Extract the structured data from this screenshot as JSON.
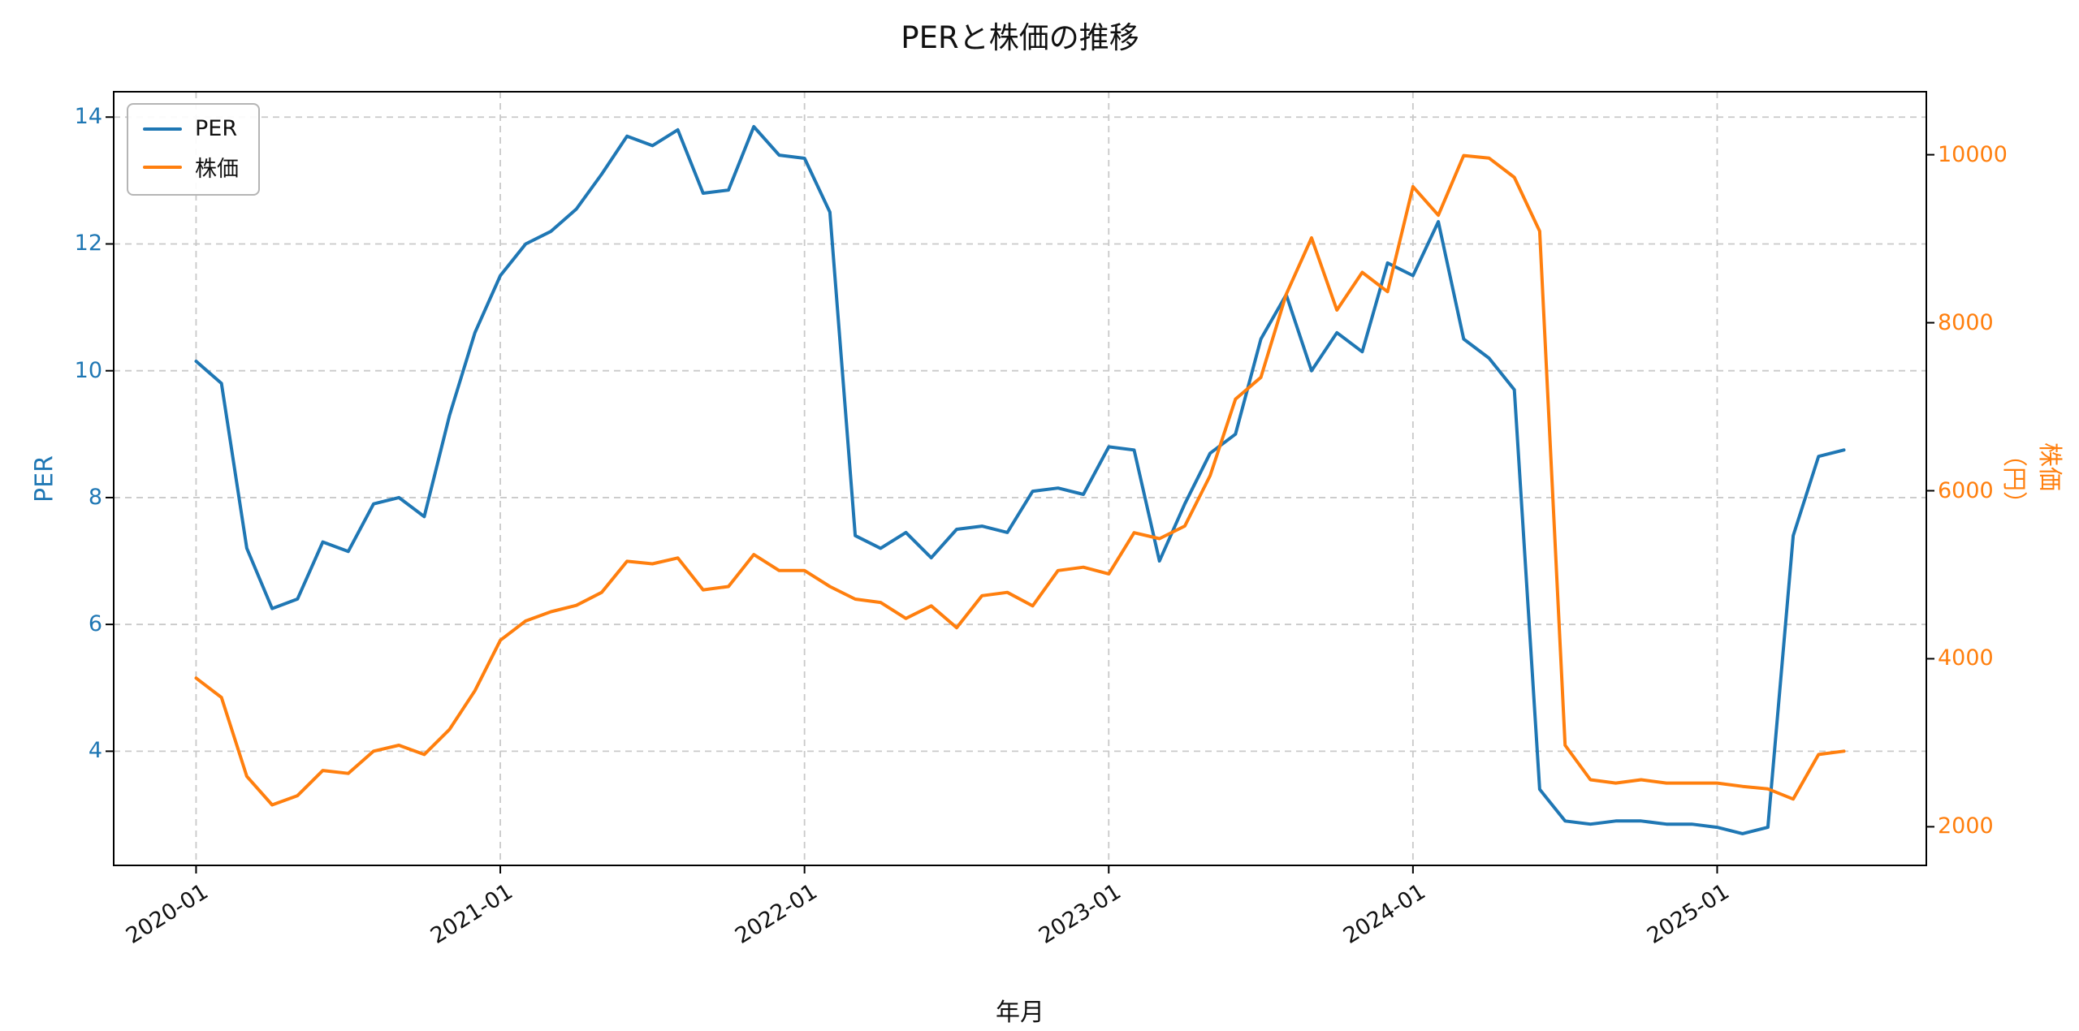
{
  "chart_data": {
    "type": "line",
    "title": "PERと株価の推移",
    "xlabel": "年月",
    "ylabel_left": "PER",
    "ylabel_right": "株価（円）",
    "grid": true,
    "legend_position": "upper-left",
    "x": [
      "2020-01",
      "2020-02",
      "2020-03",
      "2020-04",
      "2020-05",
      "2020-06",
      "2020-07",
      "2020-08",
      "2020-09",
      "2020-10",
      "2020-11",
      "2020-12",
      "2021-01",
      "2021-02",
      "2021-03",
      "2021-04",
      "2021-05",
      "2021-06",
      "2021-07",
      "2021-08",
      "2021-09",
      "2021-10",
      "2021-11",
      "2021-12",
      "2022-01",
      "2022-02",
      "2022-03",
      "2022-04",
      "2022-05",
      "2022-06",
      "2022-07",
      "2022-08",
      "2022-09",
      "2022-10",
      "2022-11",
      "2022-12",
      "2023-01",
      "2023-02",
      "2023-03",
      "2023-04",
      "2023-05",
      "2023-06",
      "2023-07",
      "2023-08",
      "2023-09",
      "2023-10",
      "2023-11",
      "2023-12",
      "2024-01",
      "2024-02",
      "2024-03",
      "2024-04",
      "2024-05",
      "2024-06",
      "2024-07",
      "2024-08",
      "2024-09",
      "2024-10",
      "2024-11",
      "2024-12",
      "2025-01",
      "2025-02",
      "2025-03",
      "2025-04",
      "2025-05",
      "2025-06"
    ],
    "x_tick_labels": [
      "2020-01",
      "2021-01",
      "2022-01",
      "2023-01",
      "2024-01",
      "2025-01"
    ],
    "left_axis": {
      "ticks": [
        4,
        6,
        8,
        10,
        12,
        14
      ],
      "range": [
        2.2,
        14.4
      ],
      "color": "#1f77b4"
    },
    "right_axis": {
      "ticks": [
        2000,
        4000,
        6000,
        8000,
        10000
      ],
      "range": [
        1540,
        10750
      ],
      "color": "#ff7f0e"
    },
    "series": [
      {
        "name": "PER",
        "axis": "left",
        "color": "#1f77b4",
        "values": [
          10.15,
          9.8,
          7.2,
          6.25,
          6.4,
          7.3,
          7.15,
          7.9,
          8.0,
          7.7,
          9.3,
          10.6,
          11.5,
          12.0,
          12.2,
          12.55,
          13.1,
          13.7,
          13.55,
          13.8,
          12.8,
          12.85,
          13.85,
          13.4,
          13.35,
          12.5,
          7.4,
          7.2,
          7.45,
          7.05,
          7.5,
          7.55,
          7.45,
          8.1,
          8.15,
          8.05,
          8.8,
          8.75,
          7.0,
          7.9,
          8.7,
          9.0,
          10.5,
          11.2,
          10.0,
          10.6,
          10.3,
          11.7,
          11.5,
          12.35,
          10.5,
          10.2,
          9.7,
          3.4,
          2.9,
          2.85,
          2.9,
          2.9,
          2.85,
          2.85,
          2.8,
          2.7,
          2.8,
          7.4,
          8.65,
          8.75
        ]
      },
      {
        "name": "株価",
        "axis": "right",
        "color": "#ff7f0e",
        "values": [
          3770,
          3540,
          2600,
          2260,
          2370,
          2670,
          2635,
          2900,
          2970,
          2860,
          3160,
          3620,
          4220,
          4450,
          4560,
          4635,
          4790,
          5160,
          5130,
          5200,
          4820,
          4860,
          5240,
          5050,
          5050,
          4860,
          4710,
          4670,
          4480,
          4630,
          4370,
          4750,
          4790,
          4630,
          5050,
          5090,
          5010,
          5500,
          5430,
          5580,
          6180,
          7090,
          7350,
          8340,
          9010,
          8150,
          8600,
          8370,
          9620,
          9280,
          9990,
          9960,
          9730,
          9090,
          2970,
          2560,
          2520,
          2560,
          2520,
          2520,
          2520,
          2480,
          2450,
          2330,
          2860,
          2900
        ]
      }
    ]
  }
}
